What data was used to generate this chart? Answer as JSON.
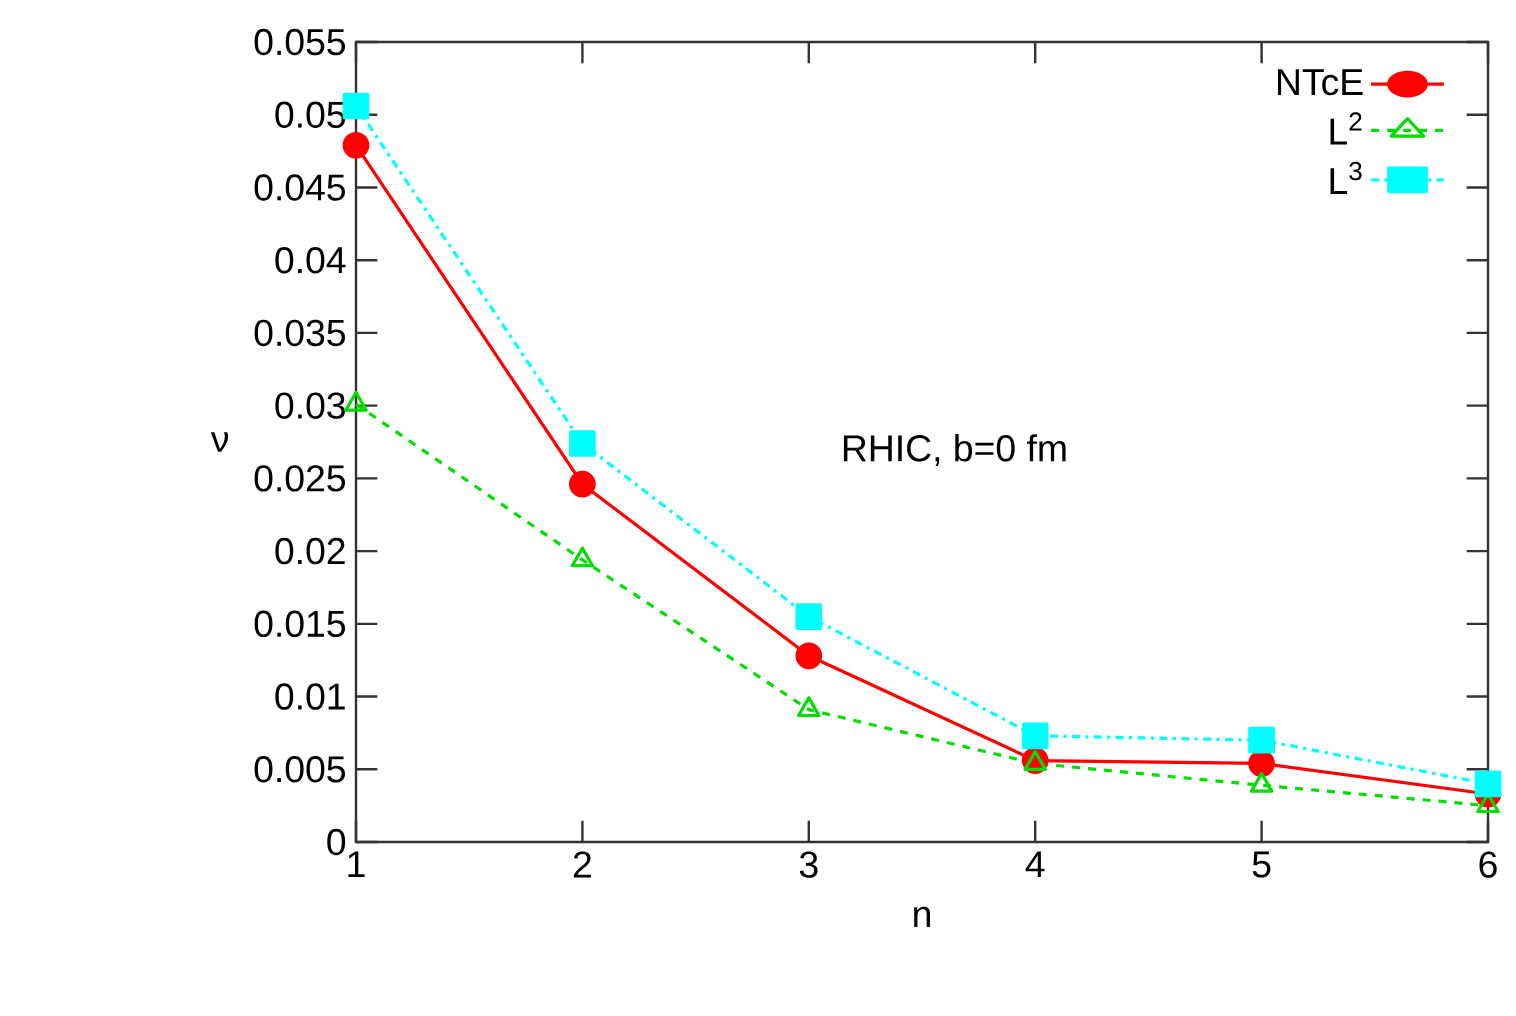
{
  "chart_data": {
    "type": "line",
    "xlabel": "n",
    "ylabel": "ν",
    "x": [
      1,
      2,
      3,
      4,
      5,
      6
    ],
    "xlim": [
      1,
      6
    ],
    "xticks": [
      1,
      2,
      3,
      4,
      5,
      6
    ],
    "ylim": [
      0,
      0.055
    ],
    "yticks": [
      0,
      0.005,
      0.01,
      0.015,
      0.02,
      0.025,
      0.03,
      0.035,
      0.04,
      0.045,
      0.05,
      0.055
    ],
    "legend": "top right",
    "grid": false,
    "annotations": [
      "RHIC, b=0 fm"
    ],
    "series": [
      {
        "name": "NTcE",
        "color": "#ff0000",
        "marker": "circle",
        "line_style": "solid",
        "values": [
          0.0479,
          0.0246,
          0.0128,
          0.0056,
          0.0054,
          0.0033
        ]
      },
      {
        "name": "L$^{2}$",
        "color": "#00dd00",
        "marker": "triangle",
        "line_style": "dashed",
        "values": [
          0.0301,
          0.0194,
          0.0091,
          0.0054,
          0.0039,
          0.0025
        ]
      },
      {
        "name": "L$^{3}$",
        "color": "#00ffff",
        "marker": "square",
        "line_style": "dashdot",
        "values": [
          0.0506,
          0.0274,
          0.0155,
          0.0073,
          0.007,
          0.004
        ]
      }
    ]
  }
}
